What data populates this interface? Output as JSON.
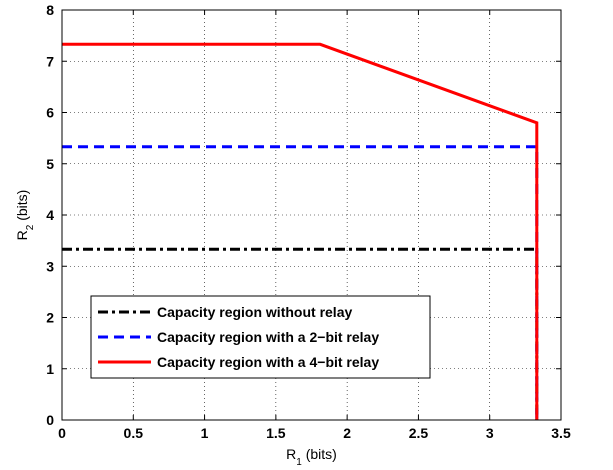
{
  "chart_data": {
    "type": "line",
    "title": "",
    "xlabel": {
      "main": "R",
      "sub": "1",
      "unit": " (bits)"
    },
    "ylabel": {
      "main": "R",
      "sub": "2",
      "unit": " (bits)"
    },
    "xlim": [
      0,
      3.5
    ],
    "ylim": [
      0,
      8
    ],
    "xticks": [
      0,
      0.5,
      1,
      1.5,
      2,
      2.5,
      3,
      3.5
    ],
    "xtick_labels": [
      "0",
      "0.5",
      "1",
      "1.5",
      "2",
      "2.5",
      "3",
      "3.5"
    ],
    "yticks": [
      0,
      1,
      2,
      3,
      4,
      5,
      6,
      7,
      8
    ],
    "ytick_labels": [
      "0",
      "1",
      "2",
      "3",
      "4",
      "5",
      "6",
      "7",
      "8"
    ],
    "grid": true,
    "legend_position": "bottom-left",
    "series": [
      {
        "name": "Capacity region without relay",
        "color": "#000000",
        "style": "dashdot",
        "x": [
          0,
          3.33,
          3.33
        ],
        "y": [
          3.33,
          3.33,
          0
        ]
      },
      {
        "name": "Capacity region with a 2-bit relay",
        "color": "#0000ff",
        "style": "dashed",
        "x": [
          0,
          3.33,
          3.33
        ],
        "y": [
          5.33,
          5.33,
          0
        ]
      },
      {
        "name": "Capacity region with a 4-bit relay",
        "color": "#ff0000",
        "style": "solid",
        "x": [
          0,
          1.81,
          3.33,
          3.33
        ],
        "y": [
          7.33,
          7.33,
          5.8,
          0
        ]
      }
    ],
    "legend_labels": [
      "Capacity region without relay",
      "Capacity region with a 2−bit relay",
      "Capacity region with a 4−bit relay"
    ]
  }
}
